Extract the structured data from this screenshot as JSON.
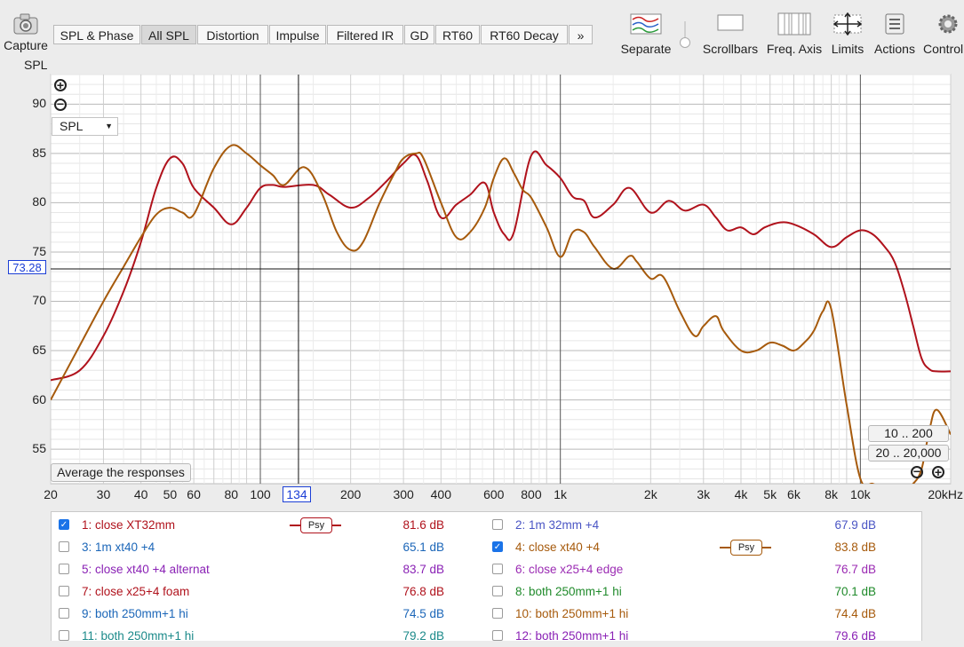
{
  "toolbar": {
    "capture_label": "Capture",
    "tabs": [
      "SPL & Phase",
      "All SPL",
      "Distortion",
      "Impulse",
      "Filtered IR",
      "GD",
      "RT60",
      "RT60 Decay"
    ],
    "more": "»",
    "tools": [
      "Separate",
      "Scrollbars",
      "Freq. Axis",
      "Limits",
      "Actions",
      "Control"
    ]
  },
  "plot": {
    "axis_title": "SPL",
    "dropdown_value": "SPL",
    "cursor_value": "73.28",
    "cursor_freq": "134",
    "average_button": "Average the responses",
    "range_buttons": [
      "10 .. 200",
      "20 .. 20,000"
    ]
  },
  "chart_data": {
    "type": "line",
    "xscale": "log",
    "xlim": [
      20,
      20000
    ],
    "ylim": [
      51.5,
      93
    ],
    "yticks": [
      55,
      60,
      65,
      70,
      75,
      80,
      85,
      90
    ],
    "ytick_labels": [
      "55",
      "60",
      "65",
      "70",
      "75",
      "80",
      "85",
      "90"
    ],
    "xticks": [
      20,
      30,
      40,
      50,
      60,
      80,
      100,
      200,
      300,
      400,
      600,
      800,
      1000,
      2000,
      3000,
      4000,
      5000,
      6000,
      8000,
      10000,
      20000
    ],
    "xtick_labels": [
      "20",
      "30",
      "40",
      "50",
      "60",
      "80",
      "100",
      "200",
      "300",
      "400",
      "600",
      "800",
      "1k",
      "2k",
      "3k",
      "4k",
      "5k",
      "6k",
      "8k",
      "10k",
      "20kHz"
    ],
    "grid": true,
    "series": [
      {
        "name": "1: close XT32mm",
        "color": "#b0121c",
        "x": [
          20,
          25,
          30,
          35,
          40,
          45,
          50,
          55,
          60,
          70,
          80,
          90,
          100,
          110,
          120,
          150,
          170,
          200,
          230,
          260,
          300,
          330,
          360,
          400,
          450,
          500,
          560,
          600,
          650,
          700,
          800,
          900,
          1000,
          1100,
          1200,
          1300,
          1500,
          1700,
          2000,
          2300,
          2600,
          3000,
          3300,
          3600,
          4000,
          4400,
          4800,
          5400,
          6000,
          7000,
          8000,
          9000,
          10000,
          11000,
          12000,
          13000,
          14000,
          15000,
          16000,
          17000,
          18000,
          20000
        ],
        "y": [
          62,
          63,
          66.5,
          71,
          76,
          81.5,
          84.5,
          84,
          81.5,
          79.5,
          77.8,
          79.5,
          81.5,
          81.8,
          81.6,
          81.8,
          80.8,
          79.5,
          80.5,
          82,
          84,
          84.8,
          82.2,
          78.5,
          79.8,
          80.8,
          82,
          79,
          76.8,
          77,
          84.8,
          83.8,
          82.5,
          80.6,
          80.2,
          78.5,
          79.8,
          81.5,
          79,
          80.2,
          79.2,
          79.8,
          78.5,
          77.2,
          77.5,
          76.8,
          77.5,
          78,
          77.8,
          76.8,
          75.5,
          76.5,
          77.2,
          76.8,
          75.6,
          74,
          71,
          67.5,
          64.2,
          63.1,
          62.9,
          62.9
        ]
      },
      {
        "name": "4: close xt40 +4",
        "color": "#a65a0c",
        "x": [
          20,
          25,
          30,
          35,
          40,
          45,
          50,
          55,
          60,
          70,
          80,
          90,
          100,
          110,
          120,
          140,
          160,
          180,
          200,
          220,
          250,
          280,
          300,
          330,
          350,
          400,
          450,
          500,
          560,
          600,
          650,
          700,
          750,
          800,
          900,
          1000,
          1100,
          1200,
          1300,
          1500,
          1700,
          1800,
          2000,
          2200,
          2500,
          2800,
          3000,
          3300,
          3500,
          4000,
          4500,
          5000,
          5500,
          6000,
          6500,
          7000,
          7500,
          8000,
          9000,
          10000,
          11000,
          12000,
          13000,
          14000,
          15000,
          16000,
          17000,
          18000,
          20000
        ],
        "y": [
          60,
          65.5,
          70,
          73.5,
          76.5,
          78.8,
          79.5,
          79,
          78.8,
          83.5,
          85.8,
          85,
          83.8,
          82.8,
          81.8,
          83.6,
          81,
          77,
          75.2,
          76,
          80,
          83,
          84.5,
          85,
          84.5,
          80,
          76.5,
          77,
          79.5,
          82.5,
          84.5,
          83,
          81.3,
          80.5,
          77.5,
          74.5,
          77,
          77,
          75.5,
          73.3,
          74.6,
          74,
          72.3,
          72.5,
          69,
          66.5,
          67.5,
          68.5,
          67,
          65,
          65,
          65.8,
          65.5,
          65,
          65.8,
          67,
          69,
          69.2,
          59.5,
          52,
          51.5,
          51,
          51,
          51,
          51.5,
          53,
          57,
          59,
          56.5
        ]
      }
    ]
  },
  "legend": {
    "items": [
      {
        "label": "1: close XT32mm",
        "value": "81.6 dB",
        "color": "#b0121c",
        "checked": true,
        "psy": true
      },
      {
        "label": "2: 1m 32mm +4",
        "value": "67.9 dB",
        "color": "#4a55c4",
        "checked": false,
        "psy": false
      },
      {
        "label": "3: 1m xt40 +4",
        "value": "65.1 dB",
        "color": "#1b66b8",
        "checked": false,
        "psy": false
      },
      {
        "label": "4: close xt40 +4",
        "value": "83.8 dB",
        "color": "#a65a0c",
        "checked": true,
        "psy": true
      },
      {
        "label": "5: close xt40 +4 alternat",
        "value": "83.7 dB",
        "color": "#8a22b5",
        "checked": false,
        "psy": false
      },
      {
        "label": "6: close x25+4 edge",
        "value": "76.7 dB",
        "color": "#9b2bb3",
        "checked": false,
        "psy": false
      },
      {
        "label": "7: close x25+4 foam",
        "value": "76.8 dB",
        "color": "#b0121c",
        "checked": false,
        "psy": false
      },
      {
        "label": "8: both 250mm+1 hi",
        "value": "70.1 dB",
        "color": "#1f8a2a",
        "checked": false,
        "psy": false
      },
      {
        "label": "9: both 250mm+1 hi",
        "value": "74.5 dB",
        "color": "#1b66b8",
        "checked": false,
        "psy": false
      },
      {
        "label": "10: both 250mm+1 hi",
        "value": "74.4 dB",
        "color": "#a65a0c",
        "checked": false,
        "psy": false
      },
      {
        "label": "11: both 250mm+1 hi",
        "value": "79.2 dB",
        "color": "#1c8a8a",
        "checked": false,
        "psy": false
      },
      {
        "label": "12: both 250mm+1 hi",
        "value": "79.6 dB",
        "color": "#8a22b5",
        "checked": false,
        "psy": false
      }
    ],
    "psy_label": "Psy"
  }
}
